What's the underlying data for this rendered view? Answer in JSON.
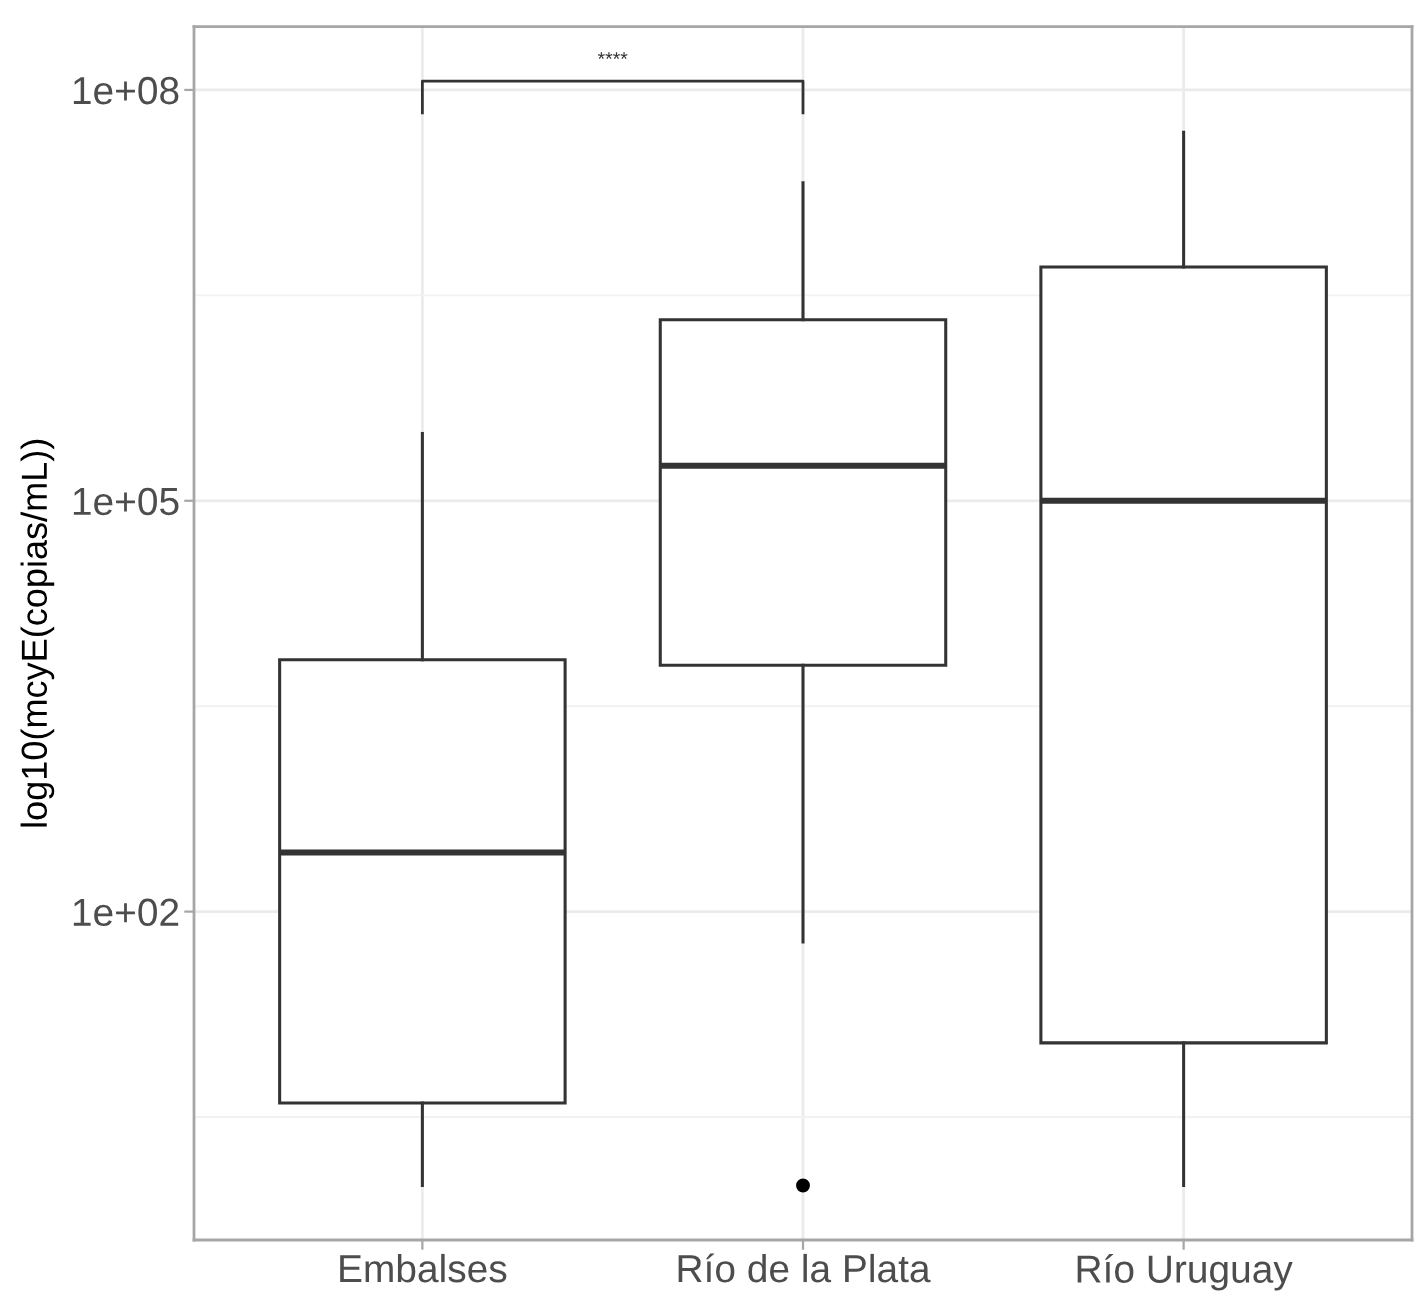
{
  "chart_data": {
    "type": "box",
    "ylabel": "log10(mcyE(copias/mL))",
    "categories": [
      "Embalses",
      "Río de la Plata",
      "Río Uruguay"
    ],
    "boxes": [
      {
        "low": 1,
        "q1": 4,
        "median": 270,
        "q3": 6900,
        "high": 310000
      },
      {
        "low": 60,
        "q1": 6300,
        "median": 180000,
        "q3": 2100000,
        "high": 21000000,
        "outliers": [
          1
        ]
      },
      {
        "low": 1,
        "q1": 11,
        "median": 100000,
        "q3": 5100000,
        "high": 49000000
      }
    ],
    "color": "#333333",
    "log": true,
    "ylim": [
      0.4,
      290000000
    ],
    "yticks": [
      {
        "value": 3.16,
        "label": null
      },
      {
        "value": 100,
        "label": "1e+02"
      },
      {
        "value": 3160,
        "label": null
      },
      {
        "value": 100000,
        "label": "1e+05"
      },
      {
        "value": 3160000,
        "label": null
      },
      {
        "value": 100000000,
        "label": "1e+08"
      }
    ],
    "grid": true,
    "annotations": [
      "****"
    ]
  }
}
